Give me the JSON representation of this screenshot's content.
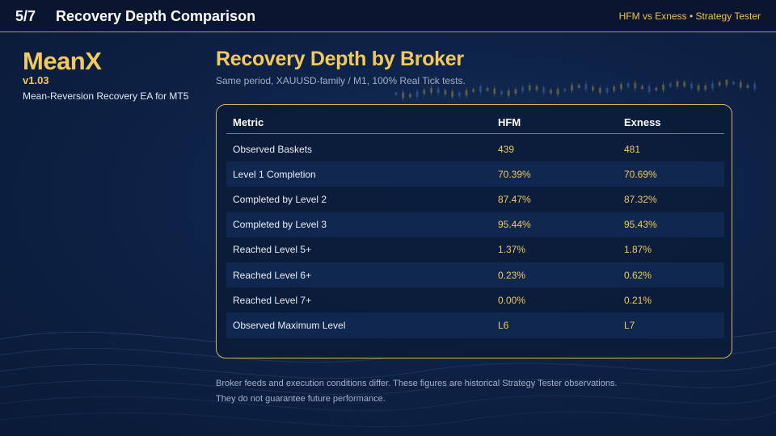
{
  "header": {
    "slide_number": "5/7",
    "title": "Recovery Depth Comparison",
    "right_label": "HFM vs Exness • Strategy Tester"
  },
  "brand": {
    "name": "MeanX",
    "version": "v1.03",
    "tagline": "Mean-Reversion Recovery EA for MT5"
  },
  "main": {
    "heading": "Recovery Depth by Broker",
    "subheading": "Same period, XAUUSD-family / M1, 100% Real Tick tests."
  },
  "table": {
    "headers": [
      "Metric",
      "HFM",
      "Exness"
    ],
    "rows": [
      [
        "Observed Baskets",
        "439",
        "481"
      ],
      [
        "Level 1 Completion",
        "70.39%",
        "70.69%"
      ],
      [
        "Completed by Level 2",
        "87.47%",
        "87.32%"
      ],
      [
        "Completed by Level 3",
        "95.44%",
        "95.43%"
      ],
      [
        "Reached Level 5+",
        "1.37%",
        "1.87%"
      ],
      [
        "Reached Level 6+",
        "0.23%",
        "0.62%"
      ],
      [
        "Reached Level 7+",
        "0.00%",
        "0.21%"
      ],
      [
        "Observed Maximum Level",
        "L6",
        "L7"
      ]
    ]
  },
  "footnote": {
    "line1": "Broker feeds and execution conditions differ. These figures are historical Strategy Tester observations.",
    "line2": "They do not guarantee future performance."
  },
  "colors": {
    "accent_gold": "#f2c95c",
    "background": "#0c1d3d",
    "panel_border": "#d6b460"
  }
}
